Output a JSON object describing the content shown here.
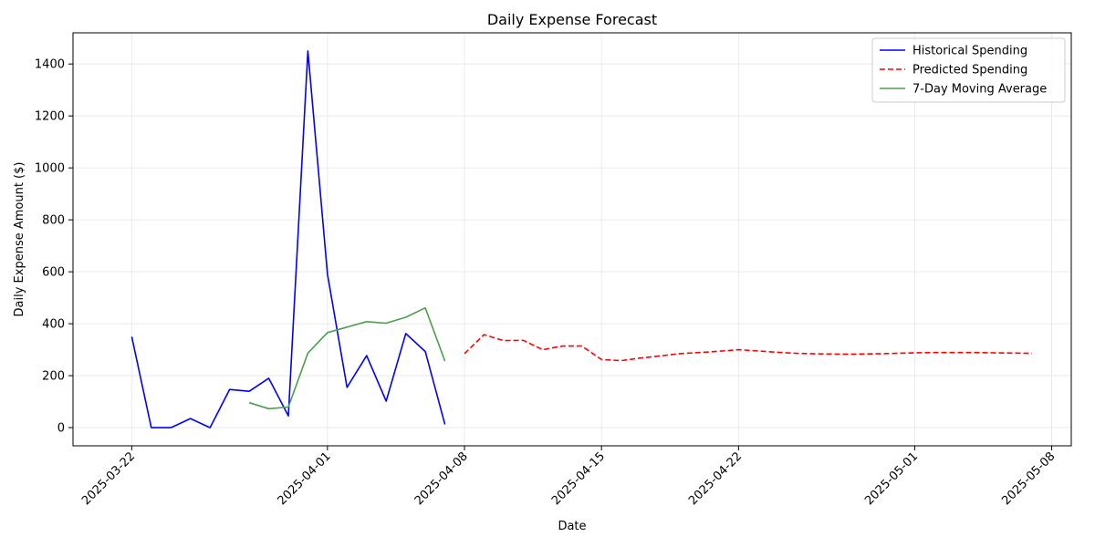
{
  "chart_data": {
    "type": "line",
    "title": "Daily Expense Forecast",
    "xlabel": "Date",
    "ylabel": "Daily Expense Amount ($)",
    "xlim": [
      "2025-03-19",
      "2025-05-09"
    ],
    "ylim": [
      -70,
      1520
    ],
    "x_ticks": [
      "2025-03-22",
      "2025-04-01",
      "2025-04-08",
      "2025-04-15",
      "2025-04-22",
      "2025-05-01",
      "2025-05-08"
    ],
    "y_ticks": [
      0,
      200,
      400,
      600,
      800,
      1000,
      1200,
      1400
    ],
    "grid": true,
    "legend_position": "top-right",
    "series": [
      {
        "name": "Historical Spending",
        "color": "#0000ff",
        "style": "solid",
        "x": [
          "2025-03-22",
          "2025-03-23",
          "2025-03-24",
          "2025-03-25",
          "2025-03-26",
          "2025-03-27",
          "2025-03-28",
          "2025-03-29",
          "2025-03-30",
          "2025-03-31",
          "2025-04-01",
          "2025-04-02",
          "2025-04-03",
          "2025-04-04",
          "2025-04-05",
          "2025-04-06",
          "2025-04-07"
        ],
        "y": [
          350,
          0,
          0,
          35,
          0,
          147,
          140,
          190,
          45,
          1450,
          590,
          155,
          277,
          102,
          362,
          293,
          12
        ]
      },
      {
        "name": "Predicted Spending",
        "color": "#ff0000",
        "style": "dashed",
        "x": [
          "2025-04-08",
          "2025-04-09",
          "2025-04-10",
          "2025-04-11",
          "2025-04-12",
          "2025-04-13",
          "2025-04-14",
          "2025-04-15",
          "2025-04-16",
          "2025-04-17",
          "2025-04-18",
          "2025-04-19",
          "2025-04-20",
          "2025-04-21",
          "2025-04-22",
          "2025-04-23",
          "2025-04-24",
          "2025-04-25",
          "2025-04-26",
          "2025-04-27",
          "2025-04-28",
          "2025-04-29",
          "2025-04-30",
          "2025-05-01",
          "2025-05-02",
          "2025-05-03",
          "2025-05-04",
          "2025-05-05",
          "2025-05-06",
          "2025-05-07"
        ],
        "y": [
          285,
          358,
          335,
          336,
          300,
          314,
          314,
          262,
          258,
          268,
          276,
          285,
          289,
          294,
          300,
          295,
          290,
          286,
          284,
          283,
          283,
          284,
          286,
          288,
          289,
          289,
          289,
          288,
          287,
          286
        ]
      },
      {
        "name": "7-Day Moving Average",
        "color": "#4c9f4c",
        "style": "solid",
        "x": [
          "2025-03-28",
          "2025-03-29",
          "2025-03-30",
          "2025-03-31",
          "2025-04-01",
          "2025-04-02",
          "2025-04-03",
          "2025-04-04",
          "2025-04-05",
          "2025-04-06",
          "2025-04-07"
        ],
        "y": [
          96,
          73,
          79,
          287,
          366,
          387,
          408,
          402,
          425,
          461,
          256
        ]
      }
    ]
  }
}
